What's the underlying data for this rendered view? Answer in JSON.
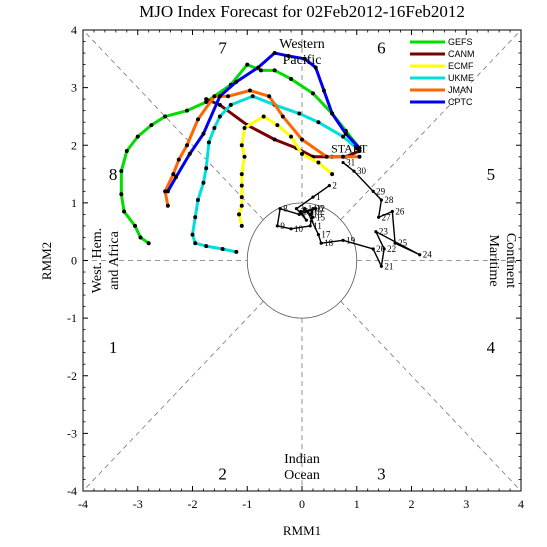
{
  "chart_data": {
    "type": "scatter",
    "title": "MJO Index Forecast for 02Feb2012-16Feb2012",
    "xlabel": "RMM1",
    "ylabel": "RMM2",
    "xlim": [
      -4,
      4
    ],
    "ylim": [
      -4,
      4
    ],
    "xticks": [
      "-4",
      "-3",
      "-2",
      "-1",
      "0",
      "1",
      "2",
      "3",
      "4"
    ],
    "yticks": [
      "-4",
      "-3",
      "-2",
      "-1",
      "0",
      "1",
      "2",
      "3",
      "4"
    ],
    "phase_labels": [
      {
        "label": "1",
        "x": -3.45,
        "y": -1.5
      },
      {
        "label": "2",
        "x": -1.45,
        "y": -3.7
      },
      {
        "label": "3",
        "x": 1.45,
        "y": -3.7
      },
      {
        "label": "4",
        "x": 3.45,
        "y": -1.5
      },
      {
        "label": "5",
        "x": 3.45,
        "y": 1.5
      },
      {
        "label": "6",
        "x": 1.45,
        "y": 3.7
      },
      {
        "label": "7",
        "x": -1.45,
        "y": 3.7
      },
      {
        "label": "8",
        "x": -3.45,
        "y": 1.5
      }
    ],
    "region_labels": {
      "top": [
        "Western",
        "Pacific"
      ],
      "bottom": [
        "Indian",
        "Ocean"
      ],
      "left": [
        "West. Hem.",
        "and Africa"
      ],
      "right": [
        "Maritime",
        "Continent"
      ]
    },
    "start_label": "START",
    "legend": [
      {
        "name": "GEFS",
        "color": "#00dd00"
      },
      {
        "name": "CANM",
        "color": "#7a0000"
      },
      {
        "name": "ECMF",
        "color": "#ffff00"
      },
      {
        "name": "UKME",
        "color": "#00dddd"
      },
      {
        "name": "JMAN",
        "color": "#ff6600"
      },
      {
        "name": "CPTC",
        "color": "#0000ee"
      }
    ],
    "observed": {
      "color": "#000000",
      "points": [
        {
          "x": 0.2,
          "y": 1.1,
          "label": "1"
        },
        {
          "x": -0.1,
          "y": 0.9,
          "label": "3"
        },
        {
          "x": 0.08,
          "y": 0.7,
          "label": "4"
        },
        {
          "x": -0.02,
          "y": 0.85,
          "label": "5"
        },
        {
          "x": 0.25,
          "y": 0.9,
          "label": "6"
        },
        {
          "x": -0.05,
          "y": 0.8,
          "label": "7"
        },
        {
          "x": -0.4,
          "y": 0.9,
          "label": "8"
        },
        {
          "x": -0.45,
          "y": 0.6,
          "label": "9"
        },
        {
          "x": -0.2,
          "y": 0.55,
          "label": "10"
        },
        {
          "x": 0.15,
          "y": 0.6,
          "label": "11"
        },
        {
          "x": 0.2,
          "y": 0.9,
          "label": "12"
        },
        {
          "x": 0.15,
          "y": 0.8,
          "label": "13"
        },
        {
          "x": 0.05,
          "y": 0.9,
          "label": "14"
        },
        {
          "x": 0.2,
          "y": 0.75,
          "label": "15"
        },
        {
          "x": 0.1,
          "y": 0.85,
          "label": "16"
        },
        {
          "x": 0.3,
          "y": 0.45,
          "label": "17"
        },
        {
          "x": 0.35,
          "y": 0.3,
          "label": "18"
        },
        {
          "x": 0.75,
          "y": 0.35,
          "label": "19"
        },
        {
          "x": 1.3,
          "y": 0.2,
          "label": "20"
        },
        {
          "x": 1.45,
          "y": -0.1,
          "label": "21"
        },
        {
          "x": 1.5,
          "y": 0.2,
          "label": "22"
        },
        {
          "x": 1.35,
          "y": 0.5,
          "label": "23"
        },
        {
          "x": 2.15,
          "y": 0.1,
          "label": "24"
        },
        {
          "x": 1.7,
          "y": 0.3,
          "label": "25"
        },
        {
          "x": 1.65,
          "y": 0.85,
          "label": "26"
        },
        {
          "x": 1.4,
          "y": 0.75,
          "label": "27"
        },
        {
          "x": 1.45,
          "y": 1.05,
          "label": "28"
        },
        {
          "x": 1.3,
          "y": 1.2,
          "label": "29"
        },
        {
          "x": 0.95,
          "y": 1.55,
          "label": "30"
        },
        {
          "x": 0.75,
          "y": 1.7,
          "label": "31"
        },
        {
          "x": 0.5,
          "y": 1.3,
          "label": "2"
        }
      ]
    },
    "series": [
      {
        "name": "GEFS",
        "color": "#00dd00",
        "values": [
          [
            1.05,
            1.95
          ],
          [
            0.8,
            2.25
          ],
          [
            0.55,
            2.55
          ],
          [
            0.2,
            2.9
          ],
          [
            -0.2,
            3.15
          ],
          [
            -0.5,
            3.3
          ],
          [
            -0.75,
            3.3
          ],
          [
            -1.0,
            3.4
          ],
          [
            -1.3,
            3.05
          ],
          [
            -1.75,
            2.75
          ],
          [
            -2.1,
            2.6
          ],
          [
            -2.5,
            2.5
          ],
          [
            -2.75,
            2.35
          ],
          [
            -3.0,
            2.15
          ],
          [
            -3.2,
            1.9
          ],
          [
            -3.3,
            1.55
          ],
          [
            -3.3,
            1.15
          ],
          [
            -3.25,
            0.85
          ],
          [
            -3.05,
            0.6
          ],
          [
            -2.95,
            0.4
          ],
          [
            -2.8,
            0.3
          ]
        ]
      },
      {
        "name": "CANM",
        "color": "#7a0000",
        "values": [
          [
            1.05,
            1.9
          ],
          [
            0.8,
            1.8
          ],
          [
            0.55,
            1.8
          ],
          [
            0.2,
            1.8
          ],
          [
            -0.1,
            1.95
          ],
          [
            -0.5,
            2.1
          ],
          [
            -1.0,
            2.35
          ],
          [
            -1.5,
            2.7
          ],
          [
            -1.75,
            2.8
          ]
        ]
      },
      {
        "name": "ECMF",
        "color": "#ffff00",
        "values": [
          [
            0.55,
            1.5
          ],
          [
            0.3,
            1.7
          ],
          [
            0.0,
            1.85
          ],
          [
            -0.2,
            2.15
          ],
          [
            -0.45,
            2.35
          ],
          [
            -0.7,
            2.5
          ],
          [
            -1.05,
            2.3
          ],
          [
            -1.1,
            2.0
          ],
          [
            -1.05,
            1.8
          ],
          [
            -1.1,
            1.5
          ],
          [
            -1.1,
            1.3
          ],
          [
            -1.1,
            1.1
          ],
          [
            -1.1,
            0.95
          ],
          [
            -1.15,
            0.8
          ],
          [
            -1.1,
            0.6
          ]
        ]
      },
      {
        "name": "UKME",
        "color": "#00dddd",
        "values": [
          [
            1.0,
            1.95
          ],
          [
            0.75,
            2.15
          ],
          [
            0.3,
            2.4
          ],
          [
            -0.05,
            2.55
          ],
          [
            -0.5,
            2.7
          ],
          [
            -0.9,
            2.85
          ],
          [
            -1.3,
            2.7
          ],
          [
            -1.5,
            2.5
          ],
          [
            -1.6,
            2.3
          ],
          [
            -1.7,
            2.05
          ],
          [
            -1.75,
            1.6
          ],
          [
            -1.8,
            1.35
          ],
          [
            -1.9,
            1.05
          ],
          [
            -1.95,
            0.75
          ],
          [
            -2.0,
            0.45
          ],
          [
            -1.95,
            0.3
          ],
          [
            -1.75,
            0.25
          ],
          [
            -1.45,
            0.2
          ],
          [
            -1.2,
            0.15
          ]
        ]
      },
      {
        "name": "JMAN",
        "color": "#ff6600",
        "values": [
          [
            1.05,
            1.8
          ],
          [
            0.75,
            1.8
          ],
          [
            0.45,
            1.8
          ],
          [
            0.0,
            2.1
          ],
          [
            -0.35,
            2.5
          ],
          [
            -0.6,
            2.85
          ],
          [
            -0.95,
            2.95
          ],
          [
            -1.35,
            2.85
          ],
          [
            -1.6,
            2.85
          ],
          [
            -1.9,
            2.45
          ],
          [
            -2.1,
            2.0
          ],
          [
            -2.25,
            1.75
          ],
          [
            -2.35,
            1.5
          ],
          [
            -2.5,
            1.2
          ],
          [
            -2.45,
            0.95
          ]
        ]
      },
      {
        "name": "CPTC",
        "color": "#0000ee",
        "values": [
          [
            1.05,
            1.95
          ],
          [
            0.8,
            2.2
          ],
          [
            0.55,
            2.55
          ],
          [
            0.4,
            2.95
          ],
          [
            0.25,
            3.35
          ],
          [
            0.05,
            3.5
          ],
          [
            -0.25,
            3.55
          ],
          [
            -0.5,
            3.6
          ],
          [
            -0.8,
            3.35
          ],
          [
            -1.2,
            3.1
          ],
          [
            -1.5,
            2.85
          ],
          [
            -1.8,
            2.2
          ],
          [
            -2.05,
            1.85
          ],
          [
            -2.3,
            1.45
          ],
          [
            -2.45,
            1.2
          ]
        ]
      }
    ]
  }
}
